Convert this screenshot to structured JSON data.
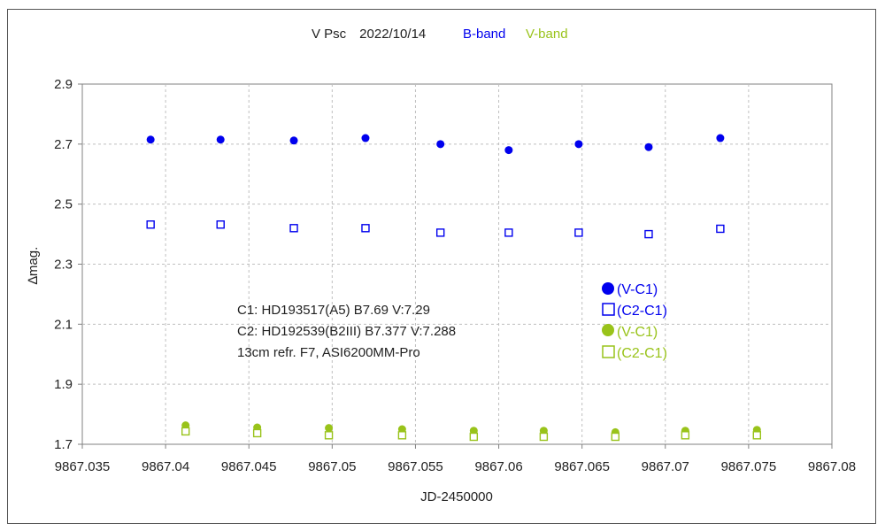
{
  "chart_data": {
    "type": "scatter",
    "title": {
      "main": "V Psc　2022/10/14",
      "b_band": "B-band",
      "v_band": "V-band",
      "b_color": "#0000ee",
      "v_color": "#99c31a"
    },
    "xlabel": "JD-2450000",
    "ylabel": "∆mag.",
    "xlim": [
      9867.035,
      9867.08
    ],
    "ylim": [
      1.7,
      2.9
    ],
    "xticks": [
      "9867.035",
      "9867.04",
      "9867.045",
      "9867.05",
      "9867.055",
      "9867.06",
      "9867.065",
      "9867.07",
      "9867.075",
      "9867.08"
    ],
    "yticks": [
      "2.9",
      "2.7",
      "2.5",
      "2.3",
      "2.1",
      "1.9",
      "1.7"
    ],
    "grid": true,
    "annotation": [
      "C1: HD193517(A5)  B7.69 V:7.29",
      "C2: HD192539(B2III) B7.377 V:7.288",
      "13cm refr. F7,  ASI6200MM-Pro"
    ],
    "legend": {
      "placement": "right",
      "entries": [
        {
          "marker": "filled-circle",
          "label": "(V-C1)",
          "color": "#0000ee"
        },
        {
          "marker": "open-square",
          "label": "(C2-C1)",
          "color": "#0000ee"
        },
        {
          "marker": "filled-circle",
          "label": "(V-C1)",
          "color": "#99c31a"
        },
        {
          "marker": "open-square",
          "label": "(C2-C1)",
          "color": "#99c31a"
        }
      ]
    },
    "series": [
      {
        "band": "B",
        "kind": "V-C1",
        "marker": "filled-circle",
        "color": "#0000ee",
        "x": [
          9867.0391,
          9867.0433,
          9867.0477,
          9867.052,
          9867.0565,
          9867.0606,
          9867.0648,
          9867.069,
          9867.0733
        ],
        "y": [
          2.715,
          2.715,
          2.712,
          2.72,
          2.7,
          2.68,
          2.7,
          2.69,
          2.72
        ]
      },
      {
        "band": "B",
        "kind": "C2-C1",
        "marker": "open-square",
        "color": "#0000ee",
        "x": [
          9867.0391,
          9867.0433,
          9867.0477,
          9867.052,
          9867.0565,
          9867.0606,
          9867.0648,
          9867.069,
          9867.0733
        ],
        "y": [
          2.432,
          2.432,
          2.42,
          2.42,
          2.405,
          2.405,
          2.405,
          2.4,
          2.418
        ]
      },
      {
        "band": "V",
        "kind": "V-C1",
        "marker": "filled-circle",
        "color": "#99c31a",
        "x": [
          9867.0412,
          9867.0455,
          9867.0498,
          9867.0542,
          9867.0585,
          9867.0627,
          9867.067,
          9867.0712,
          9867.0755
        ],
        "y": [
          1.763,
          1.756,
          1.754,
          1.75,
          1.745,
          1.745,
          1.74,
          1.745,
          1.748
        ]
      },
      {
        "band": "V",
        "kind": "C2-C1",
        "marker": "open-square",
        "color": "#99c31a",
        "x": [
          9867.0412,
          9867.0455,
          9867.0498,
          9867.0542,
          9867.0585,
          9867.0627,
          9867.067,
          9867.0712,
          9867.0755
        ],
        "y": [
          1.743,
          1.737,
          1.73,
          1.73,
          1.725,
          1.725,
          1.725,
          1.73,
          1.73
        ]
      }
    ]
  }
}
